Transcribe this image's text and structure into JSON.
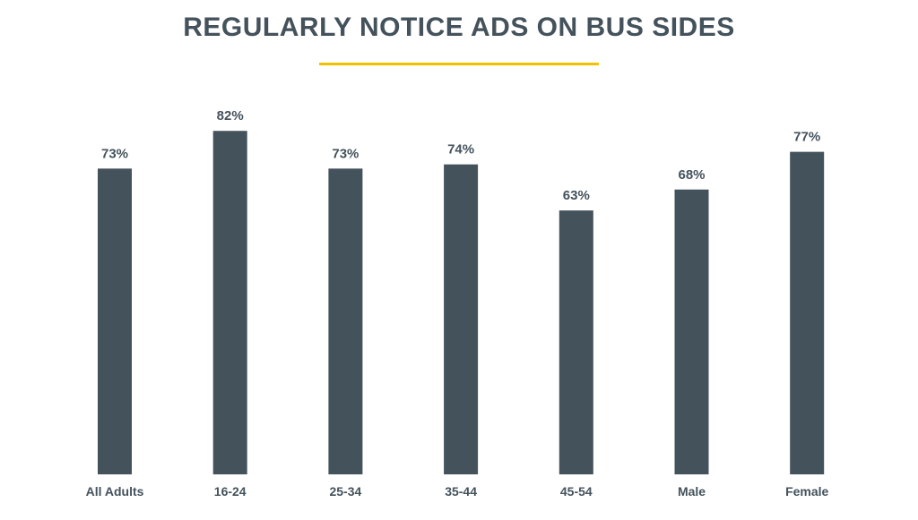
{
  "chart_data": {
    "type": "bar",
    "title": "REGULARLY NOTICE ADS ON BUS SIDES",
    "xlabel": "",
    "ylabel": "",
    "categories": [
      "All Adults",
      "16-24",
      "25-34",
      "35-44",
      "45-54",
      "Male",
      "Female"
    ],
    "values": [
      73,
      82,
      73,
      74,
      63,
      68,
      77
    ],
    "value_labels": [
      "73%",
      "82%",
      "73%",
      "74%",
      "63%",
      "68%",
      "77%"
    ],
    "unit": "%",
    "ylim": [
      0,
      100
    ],
    "grid": false,
    "legend": "none",
    "colors": {
      "bar": "#44525c",
      "title": "#44525c",
      "title_underline": "#f2c200"
    }
  }
}
